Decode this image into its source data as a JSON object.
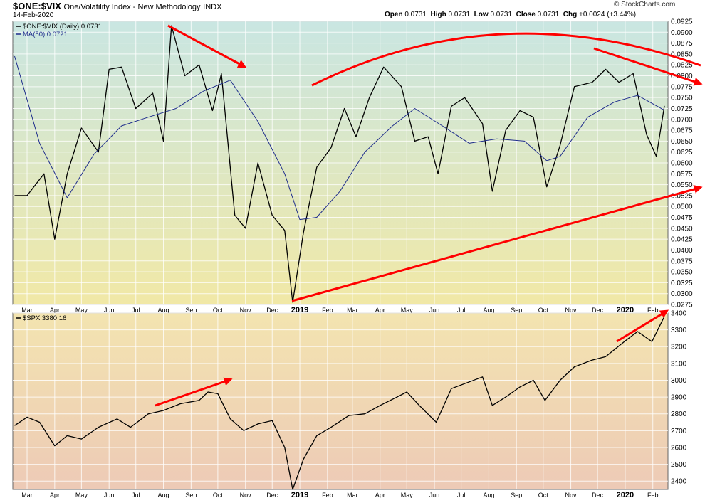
{
  "header": {
    "symbol": "$ONE:$VIX",
    "description": "One/Volatility Index - New Methodology",
    "exchange": "INDX",
    "date": "14-Feb-2020",
    "open_label": "Open",
    "open": "0.0731",
    "high_label": "High",
    "high": "0.0731",
    "low_label": "Low",
    "low": "0.0731",
    "close_label": "Close",
    "close": "0.0731",
    "chg_label": "Chg",
    "chg": "+0.0024 (+3.44%)",
    "brand": "© StockCharts.com"
  },
  "colors": {
    "price_line": "#000000",
    "ma_line": "#1f2d8c",
    "annotation": "#ff0000",
    "top_gradient_top": "#c9e6e2",
    "top_gradient_bottom": "#f1e8a6",
    "bottom_gradient_top": "#f3e4b0",
    "bottom_gradient_bottom": "#edcab6",
    "grid": "#ffffff"
  },
  "chart_data": [
    {
      "type": "line",
      "panel": "top",
      "series": [
        {
          "name": "$ONE:$VIX (Daily) 0.0731",
          "x": [
            "2018-02-15",
            "2018-03-01",
            "2018-03-20",
            "2018-04-01",
            "2018-04-15",
            "2018-05-01",
            "2018-05-20",
            "2018-06-01",
            "2018-06-15",
            "2018-07-01",
            "2018-07-20",
            "2018-08-01",
            "2018-08-10",
            "2018-08-25",
            "2018-09-10",
            "2018-09-25",
            "2018-10-05",
            "2018-10-20",
            "2018-11-01",
            "2018-11-15",
            "2018-12-01",
            "2018-12-15",
            "2018-12-24",
            "2019-01-05",
            "2019-01-20",
            "2019-02-05",
            "2019-02-20",
            "2019-03-05",
            "2019-03-20",
            "2019-04-05",
            "2019-04-25",
            "2019-05-10",
            "2019-05-25",
            "2019-06-05",
            "2019-06-20",
            "2019-07-05",
            "2019-07-25",
            "2019-08-05",
            "2019-08-20",
            "2019-09-05",
            "2019-09-20",
            "2019-10-05",
            "2019-10-20",
            "2019-11-05",
            "2019-11-25",
            "2019-12-10",
            "2019-12-25",
            "2020-01-10",
            "2020-01-25",
            "2020-02-05",
            "2020-02-14"
          ],
          "values": [
            0.0525,
            0.0525,
            0.0575,
            0.0425,
            0.0575,
            0.068,
            0.0625,
            0.0815,
            0.082,
            0.0725,
            0.076,
            0.065,
            0.0915,
            0.08,
            0.0825,
            0.072,
            0.0805,
            0.048,
            0.045,
            0.06,
            0.048,
            0.0445,
            0.028,
            0.044,
            0.059,
            0.0635,
            0.0725,
            0.066,
            0.075,
            0.082,
            0.0775,
            0.065,
            0.066,
            0.0575,
            0.073,
            0.075,
            0.069,
            0.0535,
            0.0675,
            0.072,
            0.0705,
            0.0545,
            0.064,
            0.0775,
            0.0785,
            0.0815,
            0.0785,
            0.0805,
            0.0665,
            0.0615,
            0.0731
          ]
        },
        {
          "name": "MA(50) 0.0721",
          "x": [
            "2018-02-15",
            "2018-03-15",
            "2018-04-15",
            "2018-05-15",
            "2018-06-15",
            "2018-07-15",
            "2018-08-15",
            "2018-09-15",
            "2018-10-15",
            "2018-11-15",
            "2018-12-15",
            "2019-01-01",
            "2019-01-20",
            "2019-02-15",
            "2019-03-15",
            "2019-04-15",
            "2019-05-10",
            "2019-06-10",
            "2019-07-10",
            "2019-08-10",
            "2019-09-10",
            "2019-10-05",
            "2019-10-20",
            "2019-11-20",
            "2019-12-20",
            "2020-01-15",
            "2020-02-14"
          ],
          "values": [
            0.0845,
            0.0645,
            0.052,
            0.062,
            0.0685,
            0.0705,
            0.0725,
            0.0765,
            0.079,
            0.0695,
            0.0575,
            0.047,
            0.0475,
            0.0535,
            0.0625,
            0.0685,
            0.0725,
            0.0685,
            0.0645,
            0.0655,
            0.065,
            0.0605,
            0.0615,
            0.0705,
            0.074,
            0.0755,
            0.0721
          ]
        }
      ],
      "ylim": [
        0.0275,
        0.0925
      ],
      "y_ticks": [
        "0.0925",
        "0.0900",
        "0.0875",
        "0.0850",
        "0.0825",
        "0.0800",
        "0.0775",
        "0.0750",
        "0.0725",
        "0.0700",
        "0.0675",
        "0.0650",
        "0.0625",
        "0.0600",
        "0.0575",
        "0.0550",
        "0.0525",
        "0.0500",
        "0.0475",
        "0.0450",
        "0.0425",
        "0.0400",
        "0.0375",
        "0.0350",
        "0.0325",
        "0.0300",
        "0.0275"
      ],
      "x_ticks": [
        "Mar",
        "Apr",
        "May",
        "Jun",
        "Jul",
        "Aug",
        "Sep",
        "Oct",
        "Nov",
        "Dec",
        "2019",
        "Feb",
        "Mar",
        "Apr",
        "May",
        "Jun",
        "Jul",
        "Aug",
        "Sep",
        "Oct",
        "Nov",
        "Dec",
        "2020",
        "Feb"
      ],
      "grid": true,
      "legend": "top-left"
    },
    {
      "type": "line",
      "panel": "bottom",
      "series": [
        {
          "name": "$SPX 3380.16",
          "x": [
            "2018-02-15",
            "2018-03-01",
            "2018-03-15",
            "2018-04-01",
            "2018-04-15",
            "2018-05-01",
            "2018-05-20",
            "2018-06-10",
            "2018-06-25",
            "2018-07-15",
            "2018-08-01",
            "2018-08-20",
            "2018-09-10",
            "2018-09-20",
            "2018-10-01",
            "2018-10-15",
            "2018-10-30",
            "2018-11-15",
            "2018-12-01",
            "2018-12-15",
            "2018-12-24",
            "2019-01-05",
            "2019-01-20",
            "2019-02-05",
            "2019-02-25",
            "2019-03-15",
            "2019-04-01",
            "2019-04-20",
            "2019-05-01",
            "2019-05-15",
            "2019-06-03",
            "2019-06-20",
            "2019-07-05",
            "2019-07-25",
            "2019-08-05",
            "2019-08-20",
            "2019-09-05",
            "2019-09-20",
            "2019-10-03",
            "2019-10-20",
            "2019-11-05",
            "2019-11-25",
            "2019-12-10",
            "2019-12-31",
            "2020-01-15",
            "2020-01-31",
            "2020-02-14"
          ],
          "values": [
            2730,
            2780,
            2750,
            2610,
            2670,
            2650,
            2720,
            2770,
            2720,
            2800,
            2820,
            2860,
            2880,
            2930,
            2920,
            2770,
            2700,
            2740,
            2760,
            2600,
            2350,
            2530,
            2670,
            2720,
            2790,
            2800,
            2850,
            2900,
            2930,
            2850,
            2750,
            2950,
            2980,
            3020,
            2850,
            2900,
            2960,
            3000,
            2880,
            3000,
            3080,
            3120,
            3140,
            3230,
            3290,
            3230,
            3380
          ]
        }
      ],
      "ylim": [
        2350,
        3400
      ],
      "y_ticks": [
        "3400",
        "3300",
        "3200",
        "3100",
        "3000",
        "2900",
        "2800",
        "2700",
        "2600",
        "2500",
        "2400"
      ],
      "x_ticks": [
        "Mar",
        "Apr",
        "May",
        "Jun",
        "Jul",
        "Aug",
        "Sep",
        "Oct",
        "Nov",
        "Dec",
        "2019",
        "Feb",
        "Mar",
        "Apr",
        "May",
        "Jun",
        "Jul",
        "Aug",
        "Sep",
        "Oct",
        "Nov",
        "Dec",
        "2020",
        "Feb"
      ],
      "grid": true,
      "legend": "top-left"
    }
  ]
}
